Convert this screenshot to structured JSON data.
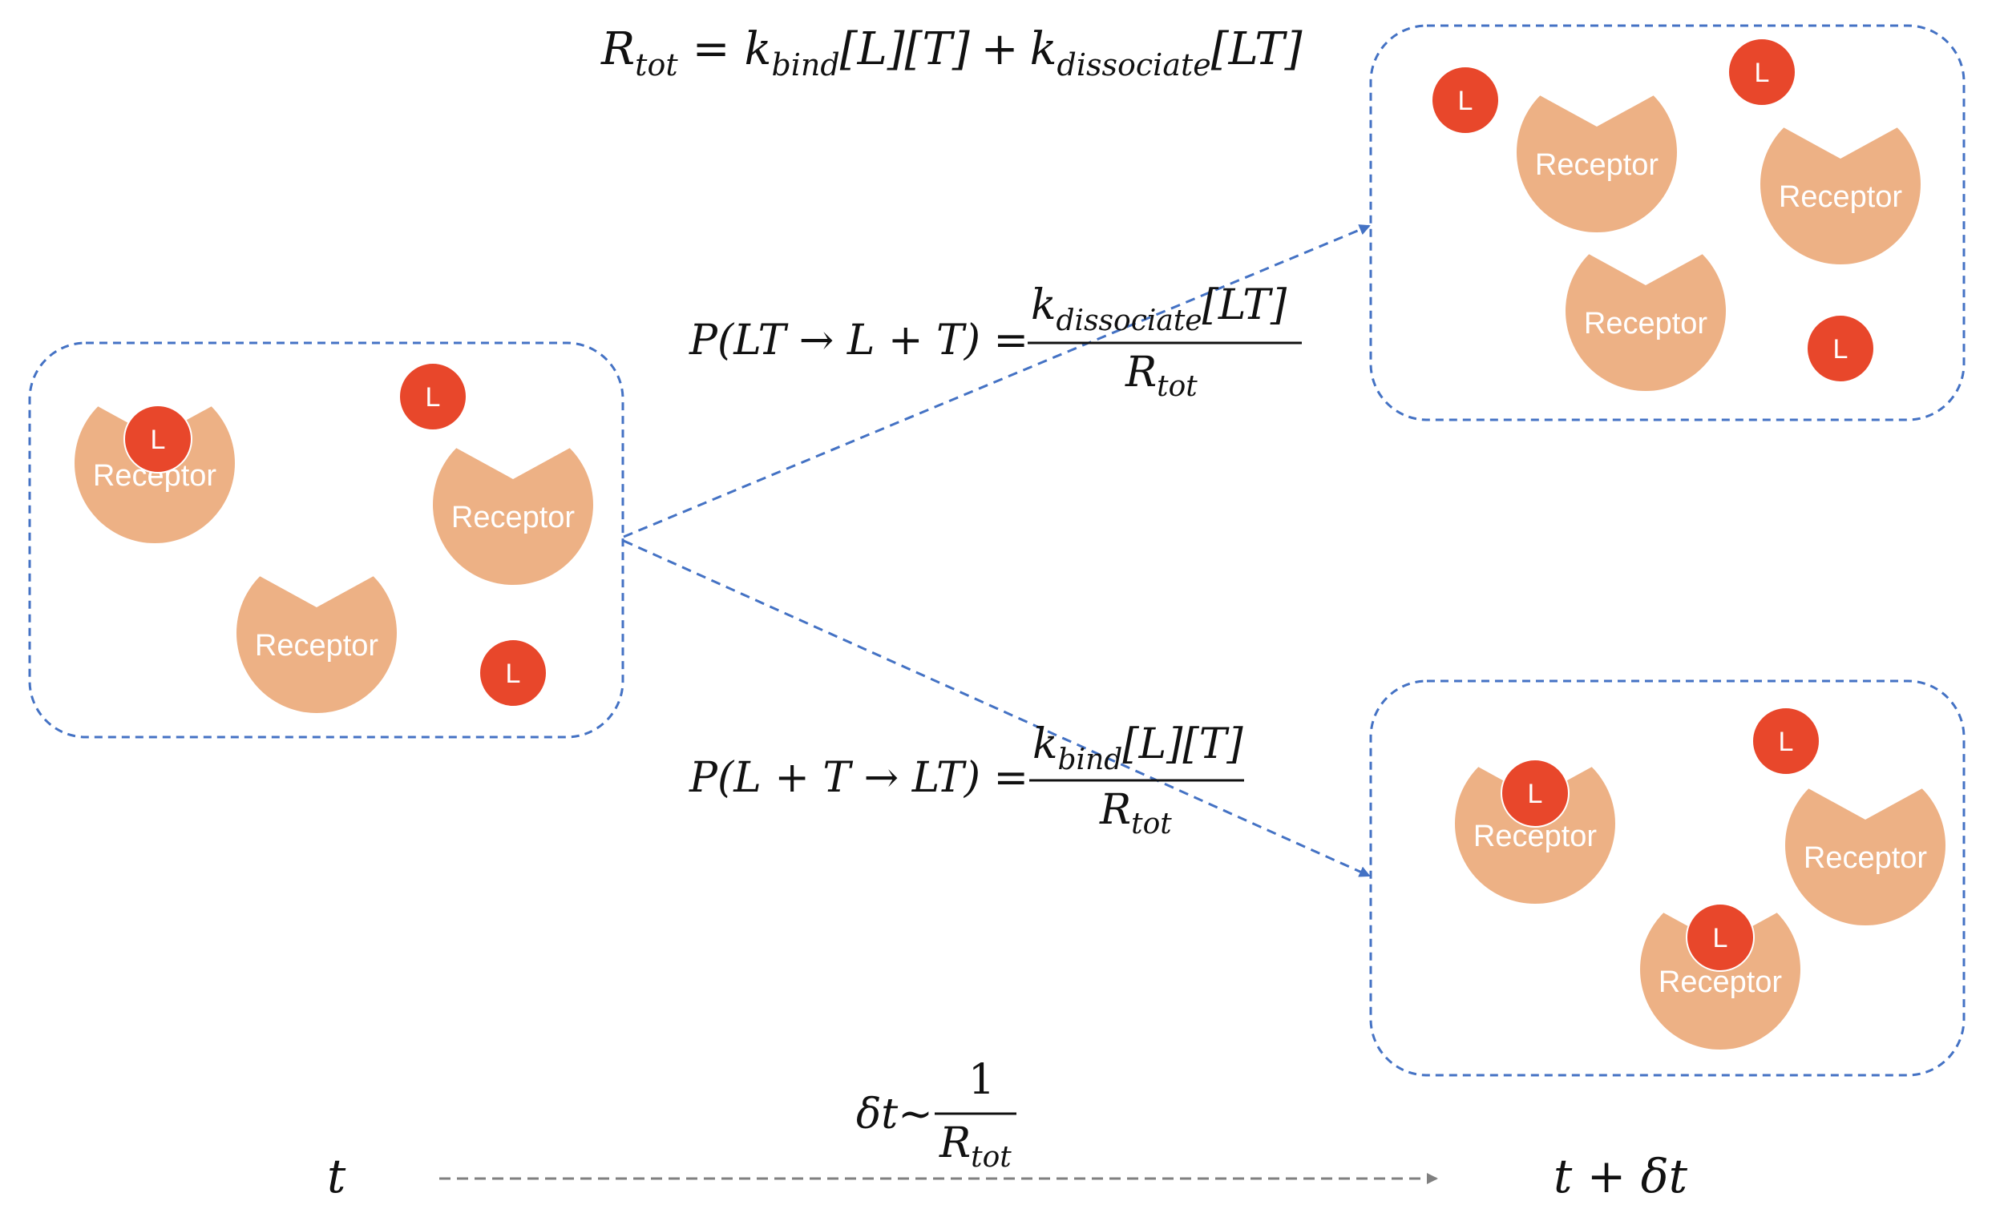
{
  "colors": {
    "receptor": "#EDB185",
    "ligand": "#E8472B",
    "box_border": "#4472C4",
    "timeline": "#808080",
    "text": "#111111"
  },
  "labels": {
    "receptor": "Receptor",
    "ligand": "L"
  },
  "equations": {
    "rtot": {
      "lhs_main": "R",
      "lhs_sub": "tot",
      "eq": "=",
      "k1_main": "k",
      "k1_sub": "bind",
      "k1_tail": "[L][T]",
      "plus": "+",
      "k2_main": "k",
      "k2_sub": "dissociate",
      "k2_tail": "[LT]"
    },
    "p_dissociate": {
      "lhs": "P(LT → L + T) =",
      "num_main": "k",
      "num_sub": "dissociate",
      "num_tail": "[LT]",
      "den_main": "R",
      "den_sub": "tot"
    },
    "p_bind": {
      "lhs": "P(L + T → LT) =",
      "num_main": "k",
      "num_sub": "bind",
      "num_tail": "[L][T]",
      "den_main": "R",
      "den_sub": "tot"
    },
    "dt": {
      "lhs": "δt~",
      "num": "1",
      "den_main": "R",
      "den_sub": "tot"
    }
  },
  "timeline": {
    "start": "t",
    "end": "t +  δt"
  }
}
